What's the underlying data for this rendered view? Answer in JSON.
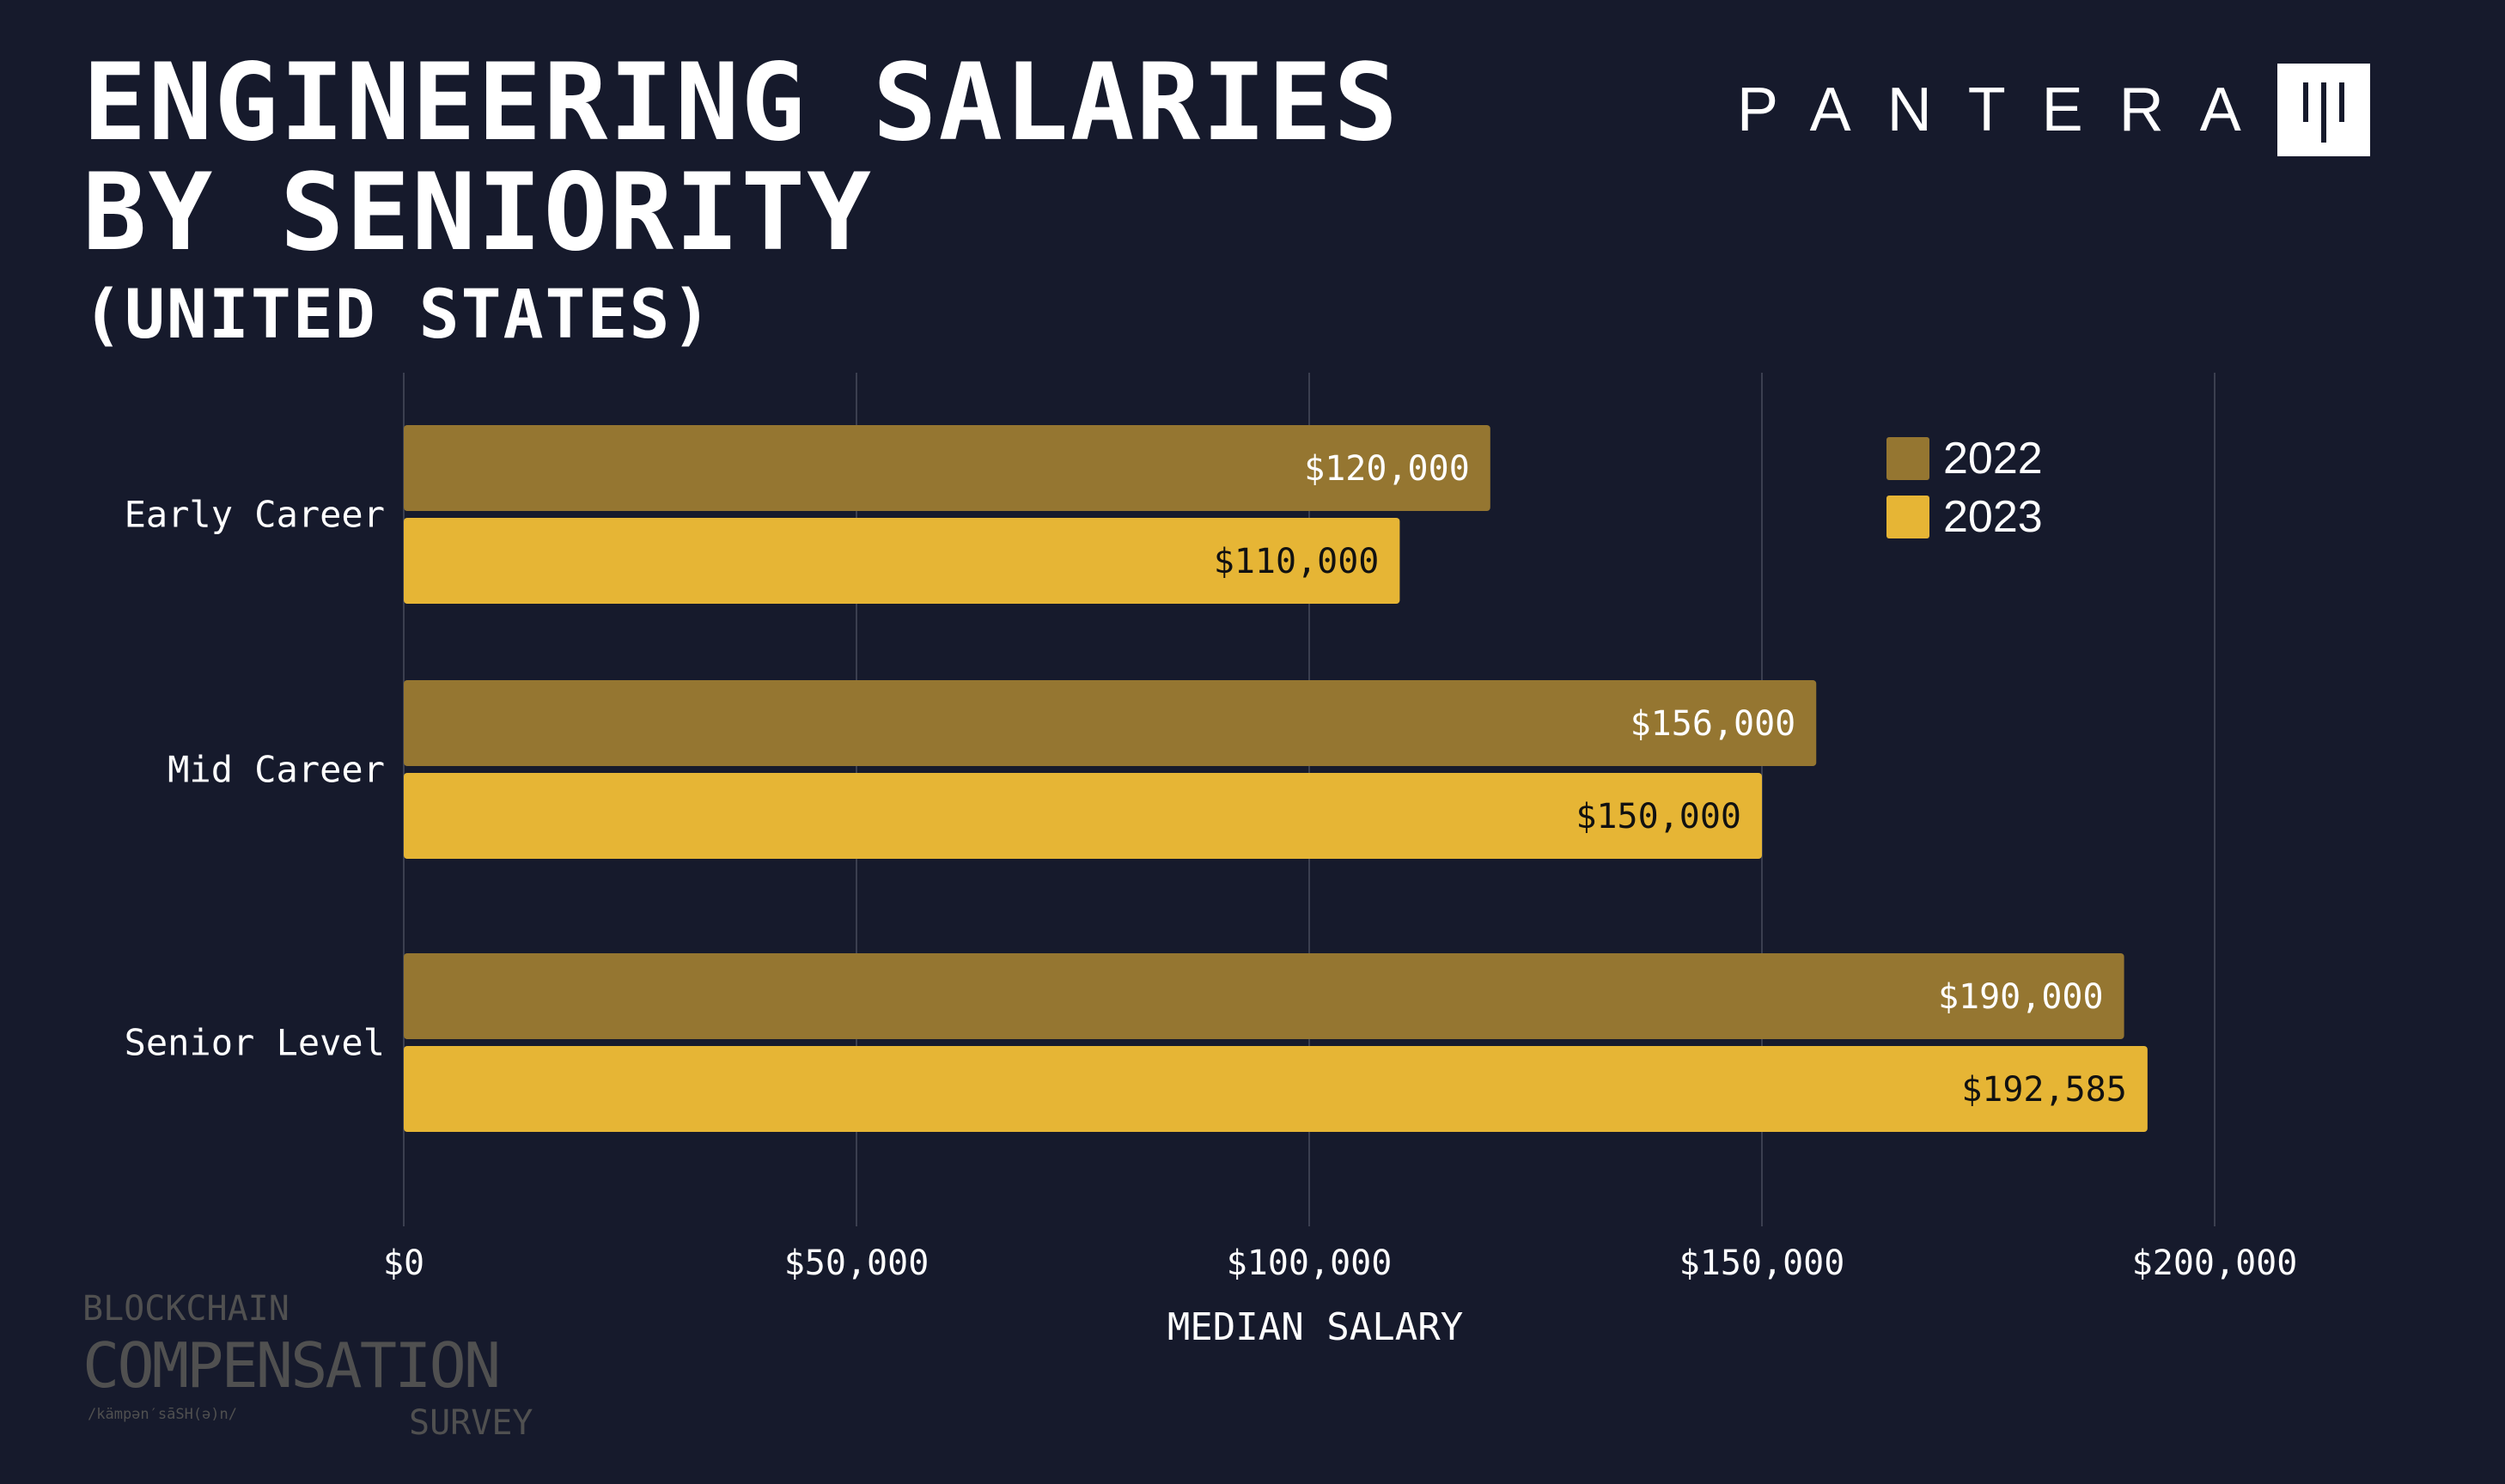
{
  "header": {
    "title_line1": "ENGINEERING SALARIES",
    "title_line2": "BY SENIORITY",
    "subtitle": "(UNITED STATES)"
  },
  "logo": {
    "text": "PANTERA"
  },
  "watermark": {
    "line1": "BLOCKCHAIN",
    "line2": "COMPENSATION",
    "phonetic": "/kämpən′sāSH(ə)n/",
    "line3": "SURVEY"
  },
  "chart_data": {
    "type": "bar",
    "orientation": "horizontal",
    "title": "ENGINEERING SALARIES BY SENIORITY (UNITED STATES)",
    "categories": [
      "Early Career",
      "Mid Career",
      "Senior Level"
    ],
    "series": [
      {
        "name": "2022",
        "values": [
          120000,
          156000,
          190000
        ],
        "labels": [
          "$120,000",
          "$156,000",
          "$190,000"
        ],
        "color": "#957631"
      },
      {
        "name": "2023",
        "values": [
          110000,
          150000,
          192585
        ],
        "labels": [
          "$110,000",
          "$150,000",
          "$192,585"
        ],
        "color": "#e6b535"
      }
    ],
    "xlabel": "MEDIAN SALARY",
    "xlim": [
      0,
      200000
    ],
    "xticks": [
      0,
      50000,
      100000,
      150000,
      200000
    ],
    "xtick_labels": [
      "$0",
      "$50,000",
      "$100,000",
      "$150,000",
      "$200,000"
    ],
    "grid": true,
    "legend": "top-right"
  }
}
